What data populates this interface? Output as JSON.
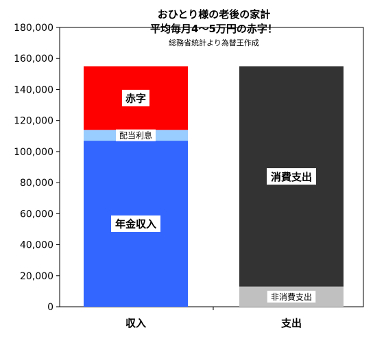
{
  "chart_data": {
    "type": "bar",
    "stacked": true,
    "title_line1": "おひとり様の老後の家計",
    "title_line2": "平均毎月4〜5万円の赤字！",
    "subtitle": "総務省統計より為替王作成",
    "categories": [
      "収入",
      "支出"
    ],
    "ylim": [
      0,
      180000
    ],
    "yticks": [
      0,
      20000,
      40000,
      60000,
      80000,
      100000,
      120000,
      140000,
      160000,
      180000
    ],
    "ytick_labels": [
      "0",
      "20,000",
      "40,000",
      "60,000",
      "80,000",
      "100,000",
      "120,000",
      "140,000",
      "160,000",
      "180,000"
    ],
    "grid": false,
    "series": [
      {
        "name": "年金収入",
        "category": "収入",
        "value": 107000,
        "color": "#3366ff"
      },
      {
        "name": "配当利息",
        "category": "収入",
        "value": 7000,
        "color": "#99ccff"
      },
      {
        "name": "赤字",
        "category": "収入",
        "value": 41000,
        "color": "#ff0000"
      },
      {
        "name": "非消費支出",
        "category": "支出",
        "value": 13000,
        "color": "#c0c0c0"
      },
      {
        "name": "消費支出",
        "category": "支出",
        "value": 142000,
        "color": "#333333"
      }
    ]
  }
}
